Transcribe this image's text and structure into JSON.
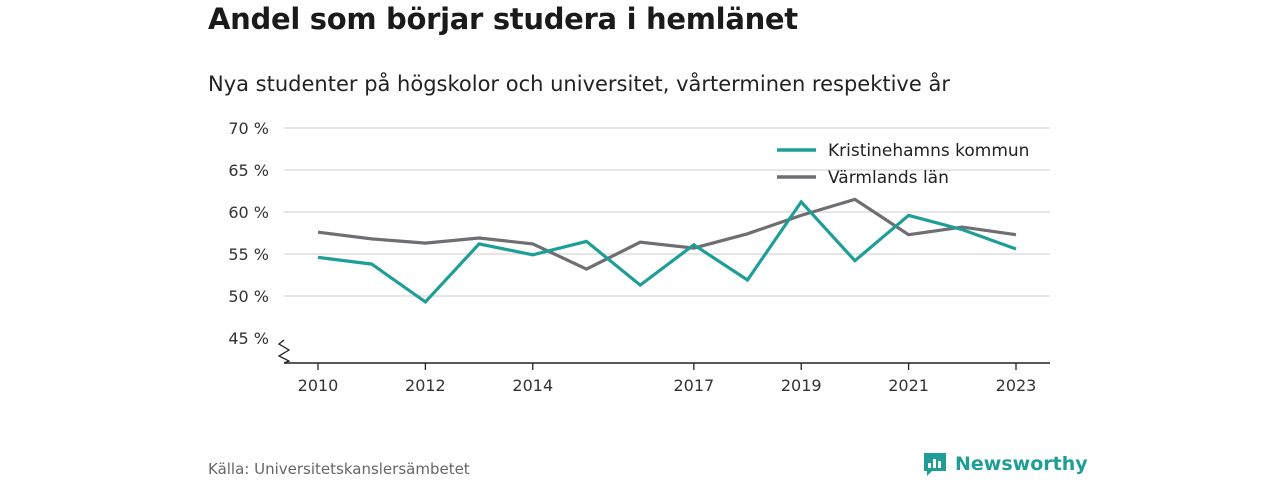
{
  "title": "Andel som börjar studera i hemlänet",
  "subtitle": "Nya studenter på högskolor och universitet, vårterminen respektive år",
  "source": "Källa: Universitetskanslersämbetet",
  "brand": {
    "name": "Newsworthy",
    "icon": "newsworthy-logo-icon",
    "color": "#1f9e98"
  },
  "chart_data": {
    "type": "line",
    "x": [
      2010,
      2011,
      2012,
      2013,
      2014,
      2015,
      2016,
      2017,
      2018,
      2019,
      2020,
      2021,
      2022,
      2023
    ],
    "x_ticks": [
      2010,
      2012,
      2014,
      2017,
      2019,
      2021,
      2023
    ],
    "y_ticks": [
      {
        "value": 70,
        "label": "70 %"
      },
      {
        "value": 65,
        "label": "65 %"
      },
      {
        "value": 60,
        "label": "60 %"
      },
      {
        "value": 55,
        "label": "55 %"
      },
      {
        "value": 50,
        "label": "50 %"
      },
      {
        "value": 45,
        "label": "45 %"
      }
    ],
    "ylim": [
      45,
      70
    ],
    "y_axis_break": true,
    "grid": true,
    "legend_position": "top-right",
    "series": [
      {
        "name": "Kristinehamns kommun",
        "color": "#1f9e98",
        "values": [
          54.6,
          53.8,
          49.3,
          56.2,
          54.9,
          56.5,
          51.3,
          56.1,
          51.9,
          61.2,
          54.2,
          59.6,
          57.9,
          55.6
        ]
      },
      {
        "name": "Värmlands län",
        "color": "#6e6e73",
        "values": [
          57.6,
          56.8,
          56.3,
          56.9,
          56.2,
          53.2,
          56.4,
          55.7,
          57.4,
          59.6,
          61.5,
          57.3,
          58.2,
          57.3
        ]
      }
    ]
  }
}
